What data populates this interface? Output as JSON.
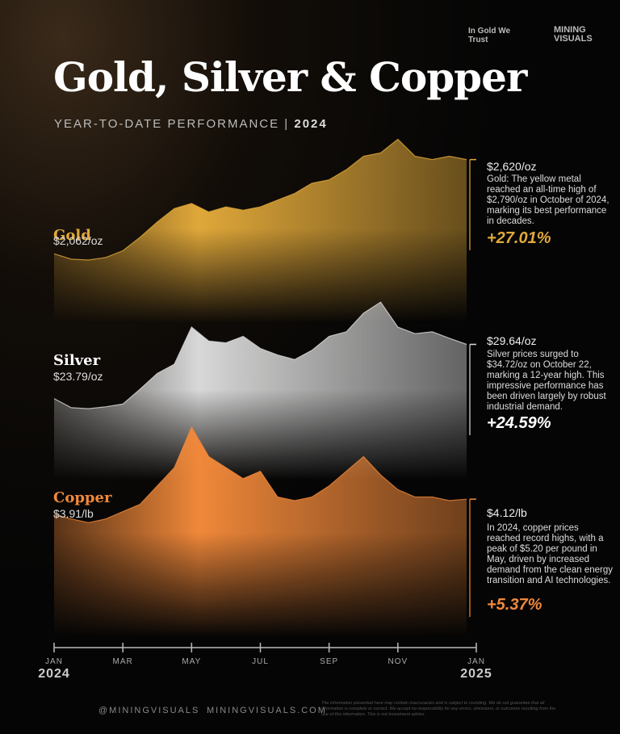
{
  "header": {
    "title": "Gold, Silver & Copper",
    "subtitle": "YEAR-TO-DATE PERFORMANCE",
    "subtitle_year": "2024",
    "logo_1": "In Gold We Trust",
    "logo_2": "MINING VISUALS"
  },
  "x_axis": {
    "categories": [
      "JAN",
      null,
      null,
      null,
      "MAR",
      null,
      null,
      null,
      "MAY",
      null,
      null,
      null,
      "JUL",
      null,
      null,
      null,
      "SEP",
      null,
      null,
      null,
      "NOV",
      null,
      null,
      null,
      "JAN"
    ],
    "start_year": "2024",
    "end_year": "2025"
  },
  "chart_data": [
    {
      "type": "area",
      "name": "Gold",
      "color": "#e0a83a",
      "start_label": "$2,062/oz",
      "end_label": "$2,620/oz",
      "description": "Gold: The yellow metal reached an all-time high of $2,790/oz in October of 2024, marking its best performance in decades.",
      "change": "+27.01%",
      "ylim": [
        1700,
        2800
      ],
      "values": [
        2062,
        2030,
        2025,
        2040,
        2080,
        2160,
        2250,
        2330,
        2360,
        2310,
        2340,
        2320,
        2340,
        2380,
        2420,
        2480,
        2500,
        2560,
        2640,
        2660,
        2740,
        2640,
        2620,
        2640,
        2620
      ]
    },
    {
      "type": "area",
      "name": "Silver",
      "color": "#d8d8d8",
      "start_label": "$23.79/oz",
      "end_label": "$29.64/oz",
      "description": "Silver prices surged to $34.72/oz on October 22, marking a 12-year high. This impressive performance has been driven largely by robust industrial demand.",
      "change": "+24.59%",
      "ylim": [
        18,
        35
      ],
      "values": [
        23.79,
        22.8,
        22.7,
        22.9,
        23.2,
        24.8,
        26.5,
        27.5,
        31.5,
        30.0,
        29.8,
        30.5,
        29.2,
        28.5,
        28.0,
        29.0,
        30.5,
        31.0,
        33.0,
        34.2,
        31.5,
        30.8,
        31.0,
        30.3,
        29.64
      ]
    },
    {
      "type": "area",
      "name": "Copper",
      "color": "#f0883a",
      "start_label": "$3.91/lb",
      "end_label": "$4.12/lb",
      "description": "In 2024, copper prices reached record highs, with a peak of $5.20 per pound in May, driven by increased demand from the clean energy transition and AI technologies.",
      "change": "+5.37%",
      "ylim": [
        3.0,
        5.2
      ],
      "values": [
        3.91,
        3.85,
        3.8,
        3.85,
        3.95,
        4.05,
        4.3,
        4.55,
        5.1,
        4.7,
        4.55,
        4.4,
        4.5,
        4.15,
        4.1,
        4.15,
        4.3,
        4.5,
        4.7,
        4.45,
        4.25,
        4.15,
        4.15,
        4.1,
        4.12
      ]
    }
  ],
  "footer": {
    "social": "@MININGVISUALS",
    "website": "MININGVISUALS.COM",
    "disclaimer": "The information presented here may contain inaccuracies and is subject to rounding. We do not guarantee that all information is complete or correct. We accept no responsibility for any errors, omissions, or outcomes resulting from the use of this information. This is not investment advice."
  }
}
